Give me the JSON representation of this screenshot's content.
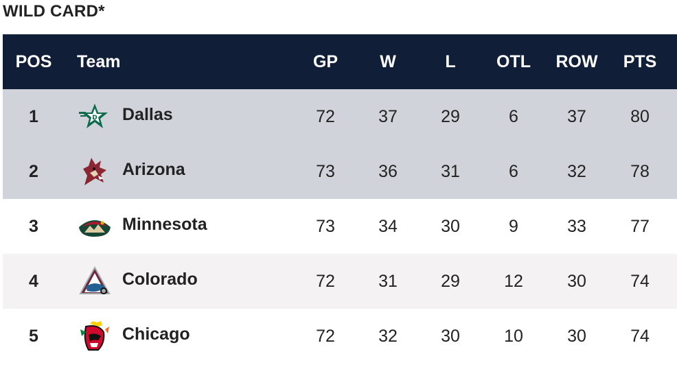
{
  "title": "WILD CARD*",
  "headers": {
    "pos": "POS",
    "team": "Team",
    "gp": "GP",
    "w": "W",
    "l": "L",
    "otl": "OTL",
    "row": "ROW",
    "pts": "PTS"
  },
  "rows": [
    {
      "pos": "1",
      "team": "Dallas",
      "logo": "dallas-stars-logo",
      "gp": "72",
      "w": "37",
      "l": "29",
      "otl": "6",
      "row": "37",
      "pts": "80"
    },
    {
      "pos": "2",
      "team": "Arizona",
      "logo": "arizona-coyotes-logo",
      "gp": "73",
      "w": "36",
      "l": "31",
      "otl": "6",
      "row": "32",
      "pts": "78"
    },
    {
      "pos": "3",
      "team": "Minnesota",
      "logo": "minnesota-wild-logo",
      "gp": "73",
      "w": "34",
      "l": "30",
      "otl": "9",
      "row": "33",
      "pts": "77"
    },
    {
      "pos": "4",
      "team": "Colorado",
      "logo": "colorado-avalanche-logo",
      "gp": "72",
      "w": "31",
      "l": "29",
      "otl": "12",
      "row": "30",
      "pts": "74"
    },
    {
      "pos": "5",
      "team": "Chicago",
      "logo": "chicago-blackhawks-logo",
      "gp": "72",
      "w": "32",
      "l": "30",
      "otl": "10",
      "row": "30",
      "pts": "74"
    }
  ],
  "colors": {
    "header_bg": "#111e38",
    "highlight_row_bg": "#d0d4da",
    "alt_row_bg": "#f4f2f3"
  }
}
